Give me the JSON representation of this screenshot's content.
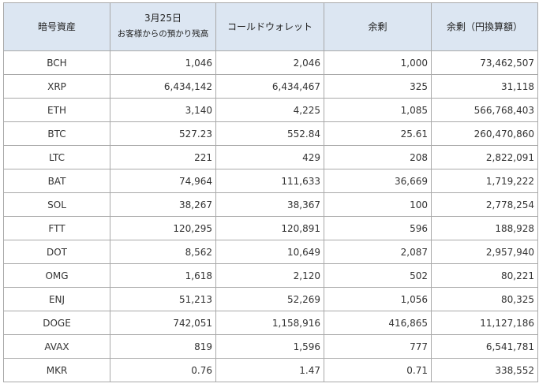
{
  "headers": {
    "asset": "暗号資産",
    "date_line1": "3月25日",
    "date_line2": "お客様からの預かり残高",
    "cold_wallet": "コールドウォレット",
    "surplus": "余剰",
    "surplus_jpy": "余剰（円換算額）"
  },
  "rows": [
    {
      "asset": "BCH",
      "deposit": "1,046",
      "cold": "2,046",
      "surplus": "1,000",
      "jpy": "73,462,507"
    },
    {
      "asset": "XRP",
      "deposit": "6,434,142",
      "cold": "6,434,467",
      "surplus": "325",
      "jpy": "31,118"
    },
    {
      "asset": "ETH",
      "deposit": "3,140",
      "cold": "4,225",
      "surplus": "1,085",
      "jpy": "566,768,403"
    },
    {
      "asset": "BTC",
      "deposit": "527.23",
      "cold": "552.84",
      "surplus": "25.61",
      "jpy": "260,470,860"
    },
    {
      "asset": "LTC",
      "deposit": "221",
      "cold": "429",
      "surplus": "208",
      "jpy": "2,822,091"
    },
    {
      "asset": "BAT",
      "deposit": "74,964",
      "cold": "111,633",
      "surplus": "36,669",
      "jpy": "1,719,222"
    },
    {
      "asset": "SOL",
      "deposit": "38,267",
      "cold": "38,367",
      "surplus": "100",
      "jpy": "2,778,254"
    },
    {
      "asset": "FTT",
      "deposit": "120,295",
      "cold": "120,891",
      "surplus": "596",
      "jpy": "188,928"
    },
    {
      "asset": "DOT",
      "deposit": "8,562",
      "cold": "10,649",
      "surplus": "2,087",
      "jpy": "2,957,940"
    },
    {
      "asset": "OMG",
      "deposit": "1,618",
      "cold": "2,120",
      "surplus": "502",
      "jpy": "80,221"
    },
    {
      "asset": "ENJ",
      "deposit": "51,213",
      "cold": "52,269",
      "surplus": "1,056",
      "jpy": "80,325"
    },
    {
      "asset": "DOGE",
      "deposit": "742,051",
      "cold": "1,158,916",
      "surplus": "416,865",
      "jpy": "11,127,186"
    },
    {
      "asset": "AVAX",
      "deposit": "819",
      "cold": "1,596",
      "surplus": "777",
      "jpy": "6,541,781"
    },
    {
      "asset": "MKR",
      "deposit": "0.76",
      "cold": "1.47",
      "surplus": "0.71",
      "jpy": "338,552"
    }
  ],
  "colors": {
    "header_bg": "#dce6f2",
    "border": "#a9a9a9",
    "text": "#333333"
  }
}
